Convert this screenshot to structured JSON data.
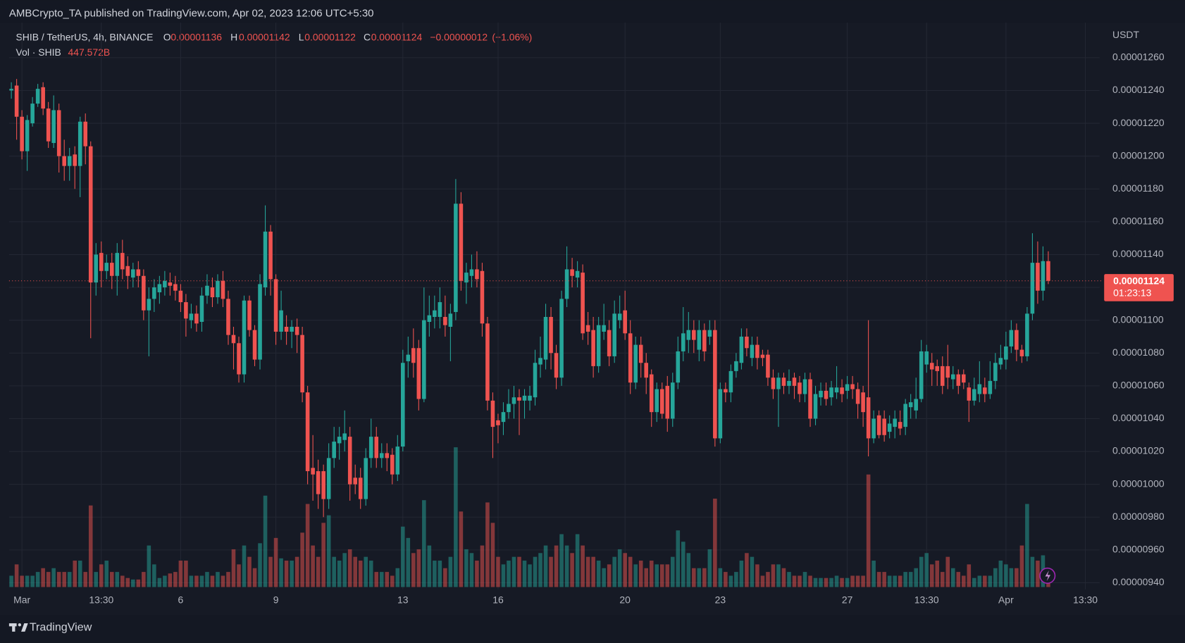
{
  "header": {
    "attribution": "AMBCrypto_TA published on TradingView.com, Apr 02, 2023 12:06 UTC+5:30"
  },
  "chart_data": {
    "type": "candlestick",
    "symbol": "SHIB / TetherUS, 4h, BINANCE",
    "ohlc_keys": [
      "O",
      "H",
      "L",
      "C"
    ],
    "change": {
      "value": -1.2e-07,
      "label": "−0.00000012"
    },
    "change_pct": {
      "value": -1.06,
      "label": "(−1.06%)"
    },
    "volume_title": "Vol · SHIB",
    "last_volume": {
      "value": 447.572,
      "label": "447.572B"
    },
    "y_axis_title": "USDT",
    "countdown": "01:23:13",
    "up_color": "#26a69a",
    "down_color": "#ef5350",
    "grid": true,
    "xlim": [
      -0.43,
      205.7
    ],
    "xticks": [
      {
        "value": 2,
        "label": "Mar"
      },
      {
        "value": 17,
        "label": "13:30"
      },
      {
        "value": 32,
        "label": "6"
      },
      {
        "value": 50,
        "label": "9"
      },
      {
        "value": 74,
        "label": "13"
      },
      {
        "value": 92,
        "label": "16"
      },
      {
        "value": 116,
        "label": "20"
      },
      {
        "value": 134,
        "label": "23"
      },
      {
        "value": 158,
        "label": "27"
      },
      {
        "value": 173,
        "label": "13:30"
      },
      {
        "value": 188,
        "label": "Apr"
      },
      {
        "value": 203,
        "label": "13:30"
      }
    ],
    "ylim": [
      9.36e-06,
      1.279e-05
    ],
    "yticks": [
      {
        "value": 1.26e-05,
        "label": "0.00001260"
      },
      {
        "value": 1.24e-05,
        "label": "0.00001240"
      },
      {
        "value": 1.22e-05,
        "label": "0.00001220"
      },
      {
        "value": 1.2e-05,
        "label": "0.00001200"
      },
      {
        "value": 1.18e-05,
        "label": "0.00001180"
      },
      {
        "value": 1.16e-05,
        "label": "0.00001160"
      },
      {
        "value": 1.14e-05,
        "label": "0.00001140"
      },
      {
        "value": 1.12e-05,
        "label": "0.00001120"
      },
      {
        "value": 1.1e-05,
        "label": "0.00001100"
      },
      {
        "value": 1.08e-05,
        "label": "0.00001080"
      },
      {
        "value": 1.06e-05,
        "label": "0.00001060"
      },
      {
        "value": 1.04e-05,
        "label": "0.00001040"
      },
      {
        "value": 1.02e-05,
        "label": "0.00001020"
      },
      {
        "value": 1e-05,
        "label": "0.00001000"
      },
      {
        "value": 9.8e-06,
        "label": "0.00000980"
      },
      {
        "value": 9.6e-06,
        "label": "0.00000960"
      },
      {
        "value": 9.4e-06,
        "label": "0.00000940"
      }
    ],
    "open": [
      1.24e-05,
      1.243e-05,
      1.224e-05,
      1.203e-05,
      1.22e-05,
      1.232e-05,
      1.242e-05,
      1.229e-05,
      1.208e-05,
      1.228e-05,
      1.2e-05,
      1.194e-05,
      1.201e-05,
      1.194e-05,
      1.221e-05,
      1.206e-05,
      1.123e-05,
      1.141e-05,
      1.13e-05,
      1.135e-05,
      1.127e-05,
      1.141e-05,
      1.133e-05,
      1.126e-05,
      1.131e-05,
      1.127e-05,
      1.106e-05,
      1.113e-05,
      1.117e-05,
      1.12e-05,
      1.123e-05,
      1.122e-05,
      1.118e-05,
      1.111e-05,
      1.1e-05,
      1.104e-05,
      1.099e-05,
      1.115e-05,
      1.12e-05,
      1.114e-05,
      1.124e-05,
      1.113e-05,
      1.091e-05,
      1.086e-05,
      1.067e-05,
      1.112e-05,
      1.094e-05,
      1.076e-05,
      1.12e-05,
      1.154e-05,
      1.125e-05,
      1.093e-05,
      1.096e-05,
      1.093e-05,
      1.096e-05,
      1.091e-05,
      1.056e-05,
      1.01e-05,
      1.008e-05,
      1.008e-05,
      9.91e-06,
      1.016e-05,
      1.025e-05,
      1.027e-05,
      1.029e-05,
      1.004e-05,
      1.004e-05,
      9.91e-06,
      1.016e-05,
      1.029e-05,
      1.016e-05,
      1.019e-05,
      1.018e-05,
      1.006e-05,
      1.023e-05,
      1.075e-05,
      1.083e-05,
      1.083e-05,
      1.052e-05,
      1.099e-05,
      1.102e-05,
      1.102e-05,
      1.102e-05,
      1.096e-05,
      1.105e-05,
      1.171e-05,
      1.123e-05,
      1.127e-05,
      1.131e-05,
      1.13e-05,
      1.098e-05,
      1.051e-05,
      1.039e-05,
      1.038e-05,
      1.044e-05,
      1.049e-05,
      1.053e-05,
      1.051e-05,
      1.051e-05,
      1.053e-05,
      1.073e-05,
      1.076e-05,
      1.102e-05,
      1.08e-05,
      1.065e-05,
      1.113e-05,
      1.131e-05,
      1.126e-05,
      1.129e-05,
      1.097e-05,
      1.094e-05,
      1.072e-05,
      1.093e-05,
      1.094e-05,
      1.078e-05,
      1.1e-05,
      1.106e-05,
      1.092e-05,
      1.062e-05,
      1.085e-05,
      1.074e-05,
      1.067e-05,
      1.044e-05,
      1.058e-05,
      1.06e-05,
      1.04e-05,
      1.062e-05,
      1.081e-05,
      1.088e-05,
      1.094e-05,
      1.082e-05,
      1.094e-05,
      1.09e-05,
      1.094e-05,
      1.028e-05,
      1.058e-05,
      1.056e-05,
      1.069e-05,
      1.074e-05,
      1.09e-05,
      1.077e-05,
      1.085e-05,
      1.079e-05,
      1.079e-05,
      1.065e-05,
      1.058e-05,
      1.065e-05,
      1.06e-05,
      1.065e-05,
      1.062e-05,
      1.055e-05,
      1.064e-05,
      1.04e-05,
      1.053e-05,
      1.057e-05,
      1.053e-05,
      1.056e-05,
      1.059e-05,
      1.057e-05,
      1.061e-05,
      1.058e-05,
      1.056e-05,
      1.053e-05,
      1.028e-05,
      1.042e-05,
      1.04e-05,
      1.032e-05,
      1.035e-05,
      1.038e-05,
      1.035e-05,
      1.047e-05,
      1.045e-05,
      1.052e-05,
      1.073e-05,
      1.074e-05,
      1.072e-05,
      1.072e-05,
      1.072e-05,
      1.064e-05,
      1.067e-05,
      1.067e-05,
      1.059e-05,
      1.051e-05,
      1.055e-05,
      1.059e-05,
      1.055e-05,
      1.063e-05,
      1.073e-05,
      1.076e-05,
      1.084e-05,
      1.094e-05,
      1.082e-05,
      1.078e-05,
      1.104e-05,
      1.135e-05,
      1.118e-05,
      1.136e-05
    ],
    "high": [
      1.245e-05,
      1.247e-05,
      1.228e-05,
      1.225e-05,
      1.236e-05,
      1.244e-05,
      1.245e-05,
      1.233e-05,
      1.237e-05,
      1.232e-05,
      1.21e-05,
      1.205e-05,
      1.206e-05,
      1.224e-05,
      1.226e-05,
      1.209e-05,
      1.147e-05,
      1.148e-05,
      1.14e-05,
      1.141e-05,
      1.147e-05,
      1.149e-05,
      1.139e-05,
      1.135e-05,
      1.136e-05,
      1.131e-05,
      1.12e-05,
      1.125e-05,
      1.127e-05,
      1.13e-05,
      1.129e-05,
      1.127e-05,
      1.122e-05,
      1.116e-05,
      1.11e-05,
      1.109e-05,
      1.12e-05,
      1.128e-05,
      1.126e-05,
      1.128e-05,
      1.13e-05,
      1.118e-05,
      1.096e-05,
      1.09e-05,
      1.115e-05,
      1.115e-05,
      1.097e-05,
      1.128e-05,
      1.17e-05,
      1.158e-05,
      1.128e-05,
      1.118e-05,
      1.103e-05,
      1.1e-05,
      1.101e-05,
      1.096e-05,
      1.06e-05,
      1.03e-05,
      1.015e-05,
      1.012e-05,
      1.025e-05,
      1.035e-05,
      1.035e-05,
      1.045e-05,
      1.035e-05,
      1.012e-05,
      1.01e-05,
      1.022e-05,
      1.04e-05,
      1.035e-05,
      1.025e-05,
      1.025e-05,
      1.022e-05,
      1.03e-05,
      1.082e-05,
      1.09e-05,
      1.095e-05,
      1.088e-05,
      1.12e-05,
      1.115e-05,
      1.115e-05,
      1.12e-05,
      1.115e-05,
      1.11e-05,
      1.186e-05,
      1.178e-05,
      1.135e-05,
      1.14e-05,
      1.142e-05,
      1.135e-05,
      1.102e-05,
      1.056e-05,
      1.043e-05,
      1.05e-05,
      1.058e-05,
      1.06e-05,
      1.058e-05,
      1.058e-05,
      1.06e-05,
      1.082e-05,
      1.09e-05,
      1.11e-05,
      1.108e-05,
      1.085e-05,
      1.118e-05,
      1.145e-05,
      1.138e-05,
      1.136e-05,
      1.134e-05,
      1.105e-05,
      1.102e-05,
      1.102e-05,
      1.11e-05,
      1.1e-05,
      1.112e-05,
      1.115e-05,
      1.118e-05,
      1.1e-05,
      1.09e-05,
      1.09e-05,
      1.08e-05,
      1.07e-05,
      1.062e-05,
      1.062e-05,
      1.066e-05,
      1.068e-05,
      1.09e-05,
      1.108e-05,
      1.105e-05,
      1.1e-05,
      1.1e-05,
      1.098e-05,
      1.1e-05,
      1.1e-05,
      1.062e-05,
      1.062e-05,
      1.073e-05,
      1.08e-05,
      1.095e-05,
      1.095e-05,
      1.09e-05,
      1.09e-05,
      1.082e-05,
      1.082e-05,
      1.07e-05,
      1.068e-05,
      1.068e-05,
      1.07e-05,
      1.068e-05,
      1.066e-05,
      1.068e-05,
      1.068e-05,
      1.06e-05,
      1.062e-05,
      1.062e-05,
      1.063e-05,
      1.072e-05,
      1.064e-05,
      1.066e-05,
      1.066e-05,
      1.062e-05,
      1.06e-05,
      1.1e-05,
      1.045e-05,
      1.045e-05,
      1.045e-05,
      1.042e-05,
      1.045e-05,
      1.045e-05,
      1.052e-05,
      1.055e-05,
      1.065e-05,
      1.088e-05,
      1.085e-05,
      1.08e-05,
      1.076e-05,
      1.078e-05,
      1.085e-05,
      1.072e-05,
      1.07e-05,
      1.07e-05,
      1.062e-05,
      1.065e-05,
      1.075e-05,
      1.065e-05,
      1.075e-05,
      1.08e-05,
      1.085e-05,
      1.093e-05,
      1.1e-05,
      1.098e-05,
      1.085e-05,
      1.108e-05,
      1.153e-05,
      1.148e-05,
      1.145e-05,
      1.142e-05
    ],
    "low": [
      1.235e-05,
      1.21e-05,
      1.198e-05,
      1.191e-05,
      1.218e-05,
      1.23e-05,
      1.225e-05,
      1.205e-05,
      1.205e-05,
      1.19e-05,
      1.185e-05,
      1.185e-05,
      1.18e-05,
      1.175e-05,
      1.195e-05,
      1.089e-05,
      1.115e-05,
      1.12e-05,
      1.125e-05,
      1.119e-05,
      1.115e-05,
      1.125e-05,
      1.119e-05,
      1.12e-05,
      1.12e-05,
      1.1e-05,
      1.078e-05,
      1.105e-05,
      1.11e-05,
      1.115e-05,
      1.115e-05,
      1.112e-05,
      1.105e-05,
      1.09e-05,
      1.095e-05,
      1.093e-05,
      1.093e-05,
      1.11e-05,
      1.108e-05,
      1.11e-05,
      1.108e-05,
      1.085e-05,
      1.07e-05,
      1.062e-05,
      1.062e-05,
      1.09e-05,
      1.072e-05,
      1.07e-05,
      1.115e-05,
      1.115e-05,
      1.085e-05,
      1.088e-05,
      1.085e-05,
      1.083e-05,
      1.08e-05,
      1.05e-05,
      1e-05,
      9.9e-06,
      9.85e-06,
      9.8e-06,
      9.85e-06,
      1.01e-05,
      1.015e-05,
      1.02e-05,
      9.9e-06,
      9.94e-06,
      9.85e-06,
      9.87e-06,
      1.01e-05,
      1.01e-05,
      1.01e-05,
      1.008e-05,
      1e-05,
      1.002e-05,
      1.02e-05,
      1.065e-05,
      1.065e-05,
      1.045e-05,
      1.05e-05,
      1.09e-05,
      1.095e-05,
      1.095e-05,
      1.09e-05,
      1.075e-05,
      1.1e-05,
      1.118e-05,
      1.11e-05,
      1.12e-05,
      1.12e-05,
      1.09e-05,
      1.045e-05,
      1.016e-05,
      1.025e-05,
      1.03e-05,
      1.04e-05,
      1.04e-05,
      1.03e-05,
      1.04e-05,
      1.045e-05,
      1.048e-05,
      1.065e-05,
      1.07e-05,
      1.07e-05,
      1.058e-05,
      1.06e-05,
      1.108e-05,
      1.12e-05,
      1.12e-05,
      1.088e-05,
      1.085e-05,
      1.065e-05,
      1.068e-05,
      1.088e-05,
      1.072e-05,
      1.074e-05,
      1.095e-05,
      1.088e-05,
      1.055e-05,
      1.058e-05,
      1.065e-05,
      1.055e-05,
      1.035e-05,
      1.038e-05,
      1.04e-05,
      1.032e-05,
      1.035e-05,
      1.058e-05,
      1.075e-05,
      1.08e-05,
      1.08e-05,
      1.075e-05,
      1.075e-05,
      1.085e-05,
      1.023e-05,
      1.025e-05,
      1.05e-05,
      1.05e-05,
      1.065e-05,
      1.07e-05,
      1.078e-05,
      1.072e-05,
      1.07e-05,
      1.072e-05,
      1.06e-05,
      1.052e-05,
      1.035e-05,
      1.055e-05,
      1.055e-05,
      1.052e-05,
      1.05e-05,
      1.05e-05,
      1.035e-05,
      1.036e-05,
      1.048e-05,
      1.048e-05,
      1.048e-05,
      1.052e-05,
      1.05e-05,
      1.052e-05,
      1.052e-05,
      1.04e-05,
      1.035e-05,
      1.017e-05,
      1.025e-05,
      1.028e-05,
      1.026e-05,
      1.028e-05,
      1.028e-05,
      1.03e-05,
      1.03e-05,
      1.04e-05,
      1.04e-05,
      1.05e-05,
      1.068e-05,
      1.06e-05,
      1.06e-05,
      1.055e-05,
      1.058e-05,
      1.058e-05,
      1.055e-05,
      1.058e-05,
      1.038e-05,
      1.048e-05,
      1.05e-05,
      1.05e-05,
      1.052e-05,
      1.058e-05,
      1.07e-05,
      1.07e-05,
      1.08e-05,
      1.075e-05,
      1.074e-05,
      1.075e-05,
      1.1e-05,
      1.11e-05,
      1.112e-05,
      1.122e-05
    ],
    "close": [
      1.241e-05,
      1.224e-05,
      1.203e-05,
      1.222e-05,
      1.232e-05,
      1.241e-05,
      1.229e-05,
      1.209e-05,
      1.228e-05,
      1.2e-05,
      1.194e-05,
      1.2e-05,
      1.194e-05,
      1.221e-05,
      1.206e-05,
      1.123e-05,
      1.14e-05,
      1.13e-05,
      1.135e-05,
      1.127e-05,
      1.141e-05,
      1.131e-05,
      1.127e-05,
      1.131e-05,
      1.127e-05,
      1.106e-05,
      1.113e-05,
      1.12e-05,
      1.122e-05,
      1.124e-05,
      1.121e-05,
      1.118e-05,
      1.111e-05,
      1.101e-05,
      1.104e-05,
      1.098e-05,
      1.115e-05,
      1.121e-05,
      1.114e-05,
      1.124e-05,
      1.113e-05,
      1.091e-05,
      1.086e-05,
      1.067e-05,
      1.112e-05,
      1.094e-05,
      1.076e-05,
      1.122e-05,
      1.154e-05,
      1.125e-05,
      1.093e-05,
      1.106e-05,
      1.093e-05,
      1.096e-05,
      1.091e-05,
      1.056e-05,
      1.008e-05,
      1.006e-05,
      9.94e-06,
      9.91e-06,
      1.016e-05,
      1.026e-05,
      1.029e-05,
      1.031e-05,
      1e-05,
      1e-05,
      9.91e-06,
      1.016e-05,
      1.029e-05,
      1.016e-05,
      1.019e-05,
      1.016e-05,
      1.006e-05,
      1.023e-05,
      1.074e-05,
      1.079e-05,
      1.074e-05,
      1.052e-05,
      1.1e-05,
      1.103e-05,
      1.106e-05,
      1.111e-05,
      1.097e-05,
      1.104e-05,
      1.171e-05,
      1.124e-05,
      1.129e-05,
      1.131e-05,
      1.125e-05,
      1.098e-05,
      1.051e-05,
      1.035e-05,
      1.036e-05,
      1.044e-05,
      1.049e-05,
      1.053e-05,
      1.051e-05,
      1.054e-05,
      1.054e-05,
      1.074e-05,
      1.077e-05,
      1.102e-05,
      1.08e-05,
      1.065e-05,
      1.113e-05,
      1.131e-05,
      1.127e-05,
      1.13e-05,
      1.092e-05,
      1.093e-05,
      1.072e-05,
      1.097e-05,
      1.097e-05,
      1.078e-05,
      1.104e-05,
      1.104e-05,
      1.092e-05,
      1.062e-05,
      1.085e-05,
      1.074e-05,
      1.065e-05,
      1.044e-05,
      1.058e-05,
      1.043e-05,
      1.04e-05,
      1.062e-05,
      1.081e-05,
      1.092e-05,
      1.094e-05,
      1.088e-05,
      1.094e-05,
      1.081e-05,
      1.094e-05,
      1.028e-05,
      1.058e-05,
      1.056e-05,
      1.069e-05,
      1.075e-05,
      1.09e-05,
      1.083e-05,
      1.085e-05,
      1.077e-05,
      1.077e-05,
      1.065e-05,
      1.058e-05,
      1.065e-05,
      1.06e-05,
      1.063e-05,
      1.06e-05,
      1.055e-05,
      1.064e-05,
      1.04e-05,
      1.055e-05,
      1.057e-05,
      1.052e-05,
      1.059e-05,
      1.059e-05,
      1.055e-05,
      1.061e-05,
      1.058e-05,
      1.049e-05,
      1.044e-05,
      1.028e-05,
      1.04e-05,
      1.03e-05,
      1.03e-05,
      1.037e-05,
      1.04e-05,
      1.034e-05,
      1.049e-05,
      1.05e-05,
      1.052e-05,
      1.081e-05,
      1.081e-05,
      1.07e-05,
      1.069e-05,
      1.06e-05,
      1.065e-05,
      1.067e-05,
      1.06e-05,
      1.062e-05,
      1.051e-05,
      1.058e-05,
      1.061e-05,
      1.055e-05,
      1.063e-05,
      1.074e-05,
      1.077e-05,
      1.084e-05,
      1.094e-05,
      1.082e-05,
      1.078e-05,
      1.104e-05,
      1.135e-05,
      1.118e-05,
      1.136e-05,
      1.124e-05
    ],
    "volume": [
      555,
      1110,
      555,
      555,
      555,
      740,
      925,
      740,
      925,
      740,
      740,
      740,
      1295,
      1295,
      740,
      3996,
      740,
      1110,
      1295,
      740,
      740,
      555,
      444,
      370,
      370,
      740,
      2035,
      1110,
      444,
      555,
      666,
      740,
      1295,
      1295,
      555,
      555,
      555,
      740,
      555,
      740,
      555,
      740,
      1850,
      1110,
      2035,
      1480,
      925,
      2146,
      4477,
      1480,
      2405,
      1406,
      1295,
      1295,
      1480,
      2664,
      4070,
      2035,
      1480,
      3145,
      3515,
      1480,
      1295,
      1665,
      1850,
      1480,
      1295,
      1480,
      1295,
      740,
      740,
      740,
      555,
      925,
      2960,
      2405,
      1665,
      1850,
      4255,
      2035,
      1295,
      1295,
      925,
      1480,
      6845,
      3700,
      1850,
      1665,
      1295,
      2035,
      4144,
      3145,
      1480,
      1110,
      1295,
      1480,
      1480,
      1295,
      1110,
      1480,
      1665,
      2035,
      1480,
      2035,
      2590,
      2035,
      1665,
      2590,
      2035,
      1480,
      1480,
      1295,
      925,
      1110,
      1480,
      1850,
      1665,
      1480,
      1110,
      1295,
      925,
      1295,
      1110,
      1110,
      1110,
      1480,
      2775,
      2220,
      1665,
      925,
      925,
      925,
      1850,
      4329,
      925,
      740,
      555,
      740,
      1295,
      1665,
      1480,
      1110,
      555,
      740,
      1110,
      1110,
      925,
      740,
      555,
      555,
      740,
      555,
      444,
      444,
      444,
      444,
      555,
      444,
      444,
      555,
      555,
      555,
      5513,
      1295,
      740,
      740,
      555,
      555,
      555,
      740,
      740,
      925,
      1480,
      1665,
      1110,
      1295,
      740,
      1480,
      925,
      740,
      555,
      1110,
      444,
      555,
      555,
      555,
      925,
      1295,
      1110,
      925,
      925,
      2035,
      4070,
      1480,
      1295,
      1554,
      447.572
    ]
  },
  "footer": {
    "brand": "TradingView"
  }
}
